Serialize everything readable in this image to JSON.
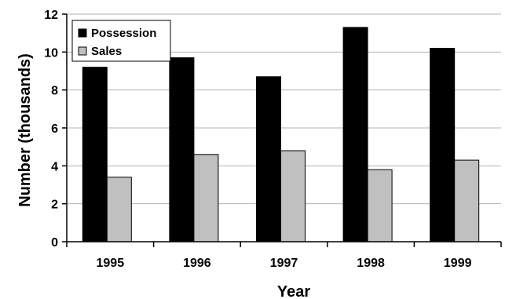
{
  "chart_data": {
    "type": "bar",
    "title": "",
    "xlabel": "Year",
    "ylabel": "Number (thousands)",
    "categories": [
      "1995",
      "1996",
      "1997",
      "1998",
      "1999"
    ],
    "series": [
      {
        "name": "Possession",
        "values": [
          9.2,
          9.7,
          8.7,
          11.3,
          10.2
        ],
        "color": "#000000"
      },
      {
        "name": "Sales",
        "values": [
          3.4,
          4.6,
          4.8,
          3.8,
          4.3
        ],
        "color": "#c0c0c0"
      }
    ],
    "ylim": [
      0,
      12
    ],
    "yticks": [
      0,
      2,
      4,
      6,
      8,
      10,
      12
    ],
    "grid": true,
    "legend": "top-left"
  }
}
